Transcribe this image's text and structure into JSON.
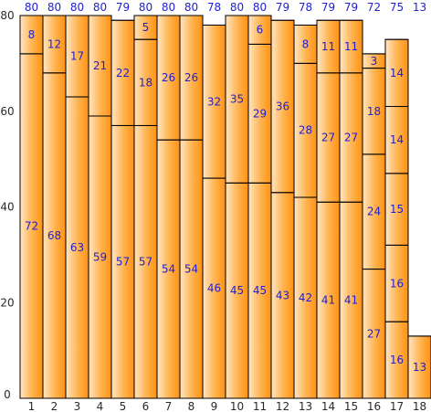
{
  "chart_data": {
    "type": "bar",
    "stacked": true,
    "title": "",
    "xlabel": "",
    "ylabel": "",
    "ylim": [
      0,
      80
    ],
    "yticks": [
      0,
      20,
      40,
      60,
      80
    ],
    "categories": [
      "1",
      "2",
      "3",
      "4",
      "5",
      "6",
      "7",
      "8",
      "9",
      "10",
      "11",
      "12",
      "13",
      "14",
      "15",
      "16",
      "17",
      "18"
    ],
    "segments": [
      [
        72,
        8
      ],
      [
        68,
        12
      ],
      [
        63,
        17
      ],
      [
        59,
        21
      ],
      [
        57,
        22
      ],
      [
        57,
        18,
        5
      ],
      [
        54,
        26
      ],
      [
        54,
        26
      ],
      [
        46,
        32
      ],
      [
        45,
        35
      ],
      [
        45,
        29,
        6
      ],
      [
        43,
        36
      ],
      [
        42,
        28,
        8
      ],
      [
        41,
        27,
        11
      ],
      [
        41,
        27,
        11
      ],
      [
        27,
        24,
        18,
        3
      ],
      [
        16,
        16,
        15,
        14,
        14
      ],
      [
        13
      ]
    ],
    "totals": [
      80,
      80,
      80,
      80,
      79,
      80,
      80,
      80,
      78,
      80,
      80,
      79,
      78,
      79,
      79,
      72,
      75,
      13
    ],
    "grid": false,
    "legend": "none",
    "colors": {
      "bar_light": "#ffe3bd",
      "bar_dark": "#ff9a21",
      "bar_border": "#000000",
      "label": "#1f1fd0",
      "axis_text": "#2a2a2a"
    }
  }
}
